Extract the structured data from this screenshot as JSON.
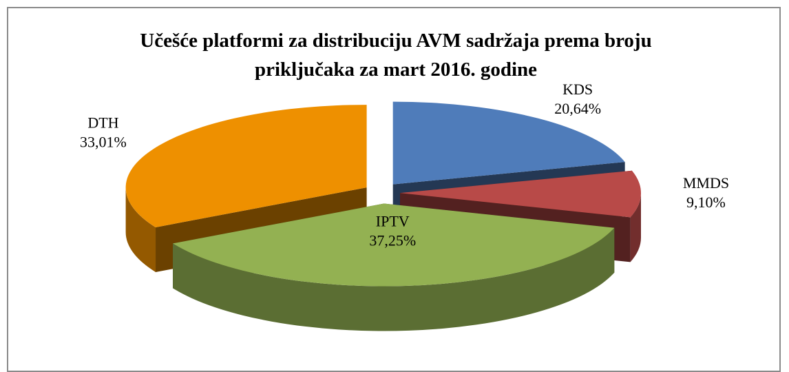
{
  "chart_data": {
    "type": "pie3d",
    "title": "Učešće platformi za distribuciju AVM sadržaja prema broju priključaka  za mart 2016. godine",
    "categories": [
      "KDS",
      "MMDS",
      "IPTV",
      "DTH"
    ],
    "values": [
      20.64,
      9.1,
      37.25,
      33.01
    ],
    "value_labels": [
      "20,64%",
      "9,10%",
      "37,25%",
      "33,01%"
    ],
    "colors": [
      "#4f7cba",
      "#b84a48",
      "#93b152",
      "#ee9000"
    ],
    "exploded": true
  }
}
